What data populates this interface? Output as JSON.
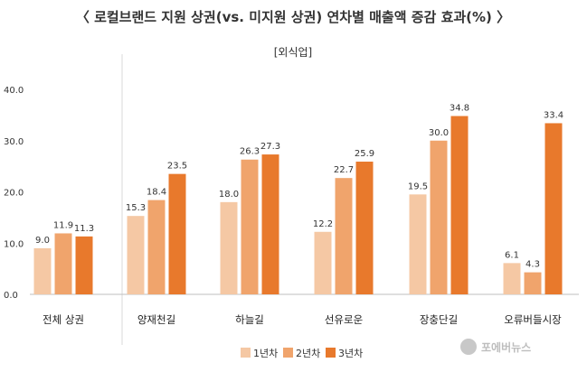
{
  "chart_data": {
    "type": "bar",
    "title": "〈 로컬브랜드 지원 상권(vs. 미지원 상권) 연차별 매출액 증감 효과(%) 〉",
    "subtitle": "[외식업]",
    "categories": [
      "전체 상권",
      "양재천길",
      "하늘길",
      "선유로운",
      "장충단길",
      "오류버들시장"
    ],
    "series": [
      {
        "name": "1년차",
        "color": "#f5c8a4",
        "values": [
          9.0,
          15.3,
          18.0,
          12.2,
          19.5,
          6.1
        ]
      },
      {
        "name": "2년차",
        "color": "#f0a46c",
        "values": [
          11.9,
          18.4,
          26.3,
          22.7,
          30.0,
          4.3
        ]
      },
      {
        "name": "3년차",
        "color": "#e8792c",
        "values": [
          11.3,
          23.5,
          27.3,
          25.9,
          34.8,
          33.4
        ]
      }
    ],
    "yticks": [
      "0.0",
      "10.0",
      "20.0",
      "30.0",
      "40.0"
    ],
    "ylim": [
      0,
      40
    ],
    "grid": false,
    "legend": "bottom"
  },
  "watermark": "포에버뉴스"
}
